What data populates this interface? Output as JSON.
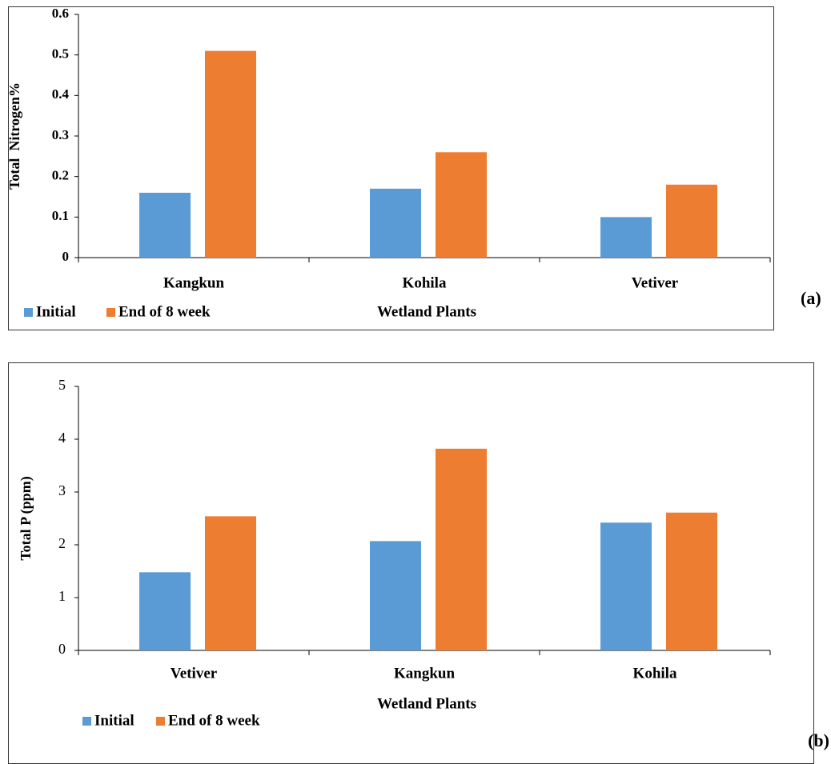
{
  "chart_data": [
    {
      "type": "bar",
      "panel_label": "(a)",
      "y_label": "Total  Nitrogen%",
      "x_label": "Wetland Plants",
      "categories": [
        "Kangkun",
        "Kohila",
        "Vetiver"
      ],
      "series": [
        {
          "name": "Initial",
          "color": "#5b9bd5",
          "values": [
            0.16,
            0.17,
            0.1
          ]
        },
        {
          "name": "End of 8 week",
          "color": "#ed7d31",
          "values": [
            0.51,
            0.26,
            0.18
          ]
        }
      ],
      "ylim": [
        0,
        0.6
      ],
      "yticks": [
        0,
        0.1,
        0.2,
        0.3,
        0.4,
        0.5,
        0.6
      ],
      "grid": false
    },
    {
      "type": "bar",
      "panel_label": "(b)",
      "y_label": "Total P (ppm)",
      "x_label": "Wetland Plants",
      "categories": [
        "Vetiver",
        "Kangkun",
        "Kohila"
      ],
      "series": [
        {
          "name": "Initial",
          "color": "#5b9bd5",
          "values": [
            1.48,
            2.07,
            2.42
          ]
        },
        {
          "name": "End of 8 week",
          "color": "#ed7d31",
          "values": [
            2.54,
            3.82,
            2.61
          ]
        }
      ],
      "ylim": [
        0,
        5
      ],
      "yticks": [
        0,
        1,
        2,
        3,
        4,
        5
      ],
      "grid": false
    }
  ]
}
